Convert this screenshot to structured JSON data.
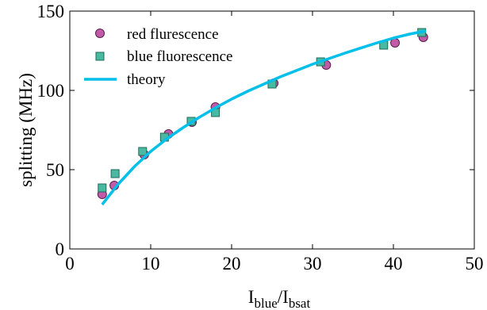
{
  "chart_data": {
    "type": "scatter",
    "xlim": [
      0,
      50
    ],
    "ylim": [
      0,
      150
    ],
    "xticks": [
      0,
      10,
      20,
      30,
      40,
      50
    ],
    "yticks": [
      0,
      50,
      100,
      150
    ],
    "xlabel": {
      "base": "I",
      "num_sub": "blue",
      "slash": "/",
      "den_base": "I",
      "den_sub": "bsat"
    },
    "ylabel": "splitting (MHz)",
    "grid": false,
    "legend_position": "top-left",
    "series": [
      {
        "name": "red flurescence",
        "kind": "marker-circle",
        "color": "#c25aa8",
        "edge": "#5a1f4e",
        "x": [
          4.0,
          5.5,
          9.2,
          12.2,
          15.1,
          18.0,
          25.2,
          31.7,
          40.2,
          43.7
        ],
        "y": [
          34.5,
          40.0,
          59.5,
          72.5,
          80.0,
          89.5,
          104.5,
          116.0,
          130.0,
          133.5
        ]
      },
      {
        "name": "blue fluorescence",
        "kind": "marker-square",
        "color": "#4ab9a2",
        "edge": "#1d6a5a",
        "x": [
          4.0,
          5.6,
          9.0,
          11.7,
          15.0,
          18.0,
          25.0,
          31.0,
          38.8,
          43.5
        ],
        "y": [
          38.5,
          47.5,
          61.5,
          70.5,
          80.5,
          86.0,
          104.0,
          118.0,
          128.5,
          136.5
        ]
      },
      {
        "name": "theory",
        "kind": "line",
        "color": "#00bfe9",
        "x": [
          4.0,
          6.0,
          8.0,
          10.0,
          12.0,
          14.0,
          16.0,
          18.0,
          20.0,
          22.0,
          24.0,
          26.0,
          28.0,
          30.0,
          32.0,
          34.0,
          36.0,
          38.0,
          40.0,
          42.0,
          44.0
        ],
        "y": [
          28.0,
          41.0,
          52.0,
          61.5,
          69.5,
          76.5,
          83.0,
          89.0,
          94.5,
          99.5,
          104.0,
          108.5,
          112.5,
          116.5,
          120.0,
          123.5,
          126.8,
          130.0,
          133.0,
          135.5,
          137.5
        ]
      }
    ]
  }
}
